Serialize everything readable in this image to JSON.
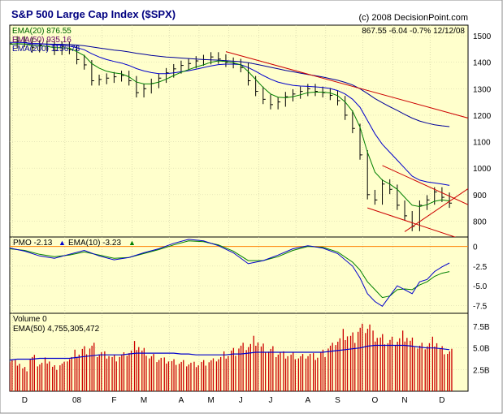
{
  "chart_data": {
    "type": "line",
    "title": "S&P 500 Large Cap Index ($SPX)",
    "copyright": "(c) 2008 DecisionPoint.com",
    "quote": "867.55  -6.04  -0.7%  12/12/08",
    "colors": {
      "background": "#ffffcc",
      "price": "#000000",
      "ema20": "#008000",
      "ema50": "#0000cc",
      "ema200": "#000099",
      "trendline": "#cc0000",
      "pmo": "#0000cc",
      "pmo_signal": "#008000",
      "zero_line": "#ff8000",
      "volume": "#cc0000",
      "volume_ema": "#0000cc",
      "title": "#0000aa"
    },
    "x_labels": [
      "D",
      "08",
      "F",
      "M",
      "A",
      "M",
      "J",
      "J",
      "A",
      "S",
      "O",
      "N",
      "D"
    ],
    "x_label_weeks": [
      2,
      9,
      14,
      18,
      23,
      27,
      31,
      35,
      40,
      44,
      49,
      53,
      58
    ],
    "price_panel": {
      "legend": [
        "EMA(20) 876.55",
        "EMA(50) 935.16",
        "EMA(200) 1156.78"
      ],
      "y_ticks": [
        800,
        900,
        1000,
        1100,
        1200,
        1300,
        1400,
        1500
      ],
      "ylim": [
        740,
        1540
      ],
      "weeks": [
        0,
        1,
        2,
        3,
        4,
        5,
        6,
        7,
        8,
        9,
        10,
        11,
        12,
        13,
        14,
        15,
        16,
        17,
        18,
        19,
        20,
        21,
        22,
        23,
        24,
        25,
        26,
        27,
        28,
        29,
        30,
        31,
        32,
        33,
        34,
        35,
        36,
        37,
        38,
        39,
        40,
        41,
        42,
        43,
        44,
        45,
        46,
        47,
        48,
        49,
        50,
        51,
        52,
        53,
        54,
        55,
        56,
        57,
        58,
        59
      ],
      "close": [
        1470,
        1480,
        1475,
        1455,
        1465,
        1460,
        1445,
        1460,
        1448,
        1410,
        1390,
        1330,
        1335,
        1340,
        1345,
        1350,
        1330,
        1285,
        1300,
        1320,
        1340,
        1360,
        1375,
        1388,
        1395,
        1405,
        1410,
        1420,
        1412,
        1400,
        1395,
        1380,
        1330,
        1290,
        1260,
        1240,
        1250,
        1270,
        1280,
        1290,
        1300,
        1290,
        1285,
        1275,
        1255,
        1200,
        1150,
        1050,
        900,
        880,
        940,
        920,
        860,
        820,
        780,
        860,
        880,
        910,
        890,
        868
      ],
      "ema20": [
        1468,
        1470,
        1469,
        1463,
        1462,
        1460,
        1455,
        1455,
        1453,
        1440,
        1425,
        1395,
        1378,
        1366,
        1360,
        1356,
        1345,
        1325,
        1318,
        1318,
        1325,
        1336,
        1350,
        1362,
        1372,
        1382,
        1390,
        1400,
        1405,
        1403,
        1398,
        1390,
        1365,
        1335,
        1305,
        1280,
        1268,
        1266,
        1270,
        1277,
        1285,
        1287,
        1287,
        1284,
        1274,
        1250,
        1215,
        1155,
        1060,
        985,
        955,
        940,
        920,
        890,
        860,
        855,
        862,
        875,
        880,
        876
      ],
      "ema50": [
        1475,
        1475,
        1474,
        1471,
        1470,
        1468,
        1465,
        1464,
        1461,
        1455,
        1447,
        1432,
        1420,
        1410,
        1403,
        1397,
        1388,
        1376,
        1367,
        1361,
        1357,
        1357,
        1360,
        1364,
        1368,
        1374,
        1380,
        1386,
        1391,
        1393,
        1393,
        1391,
        1380,
        1366,
        1350,
        1336,
        1325,
        1318,
        1313,
        1310,
        1309,
        1307,
        1305,
        1301,
        1293,
        1280,
        1260,
        1230,
        1180,
        1130,
        1090,
        1060,
        1030,
        1000,
        970,
        955,
        948,
        944,
        940,
        935
      ],
      "ema200": [
        1468,
        1469,
        1469,
        1469,
        1469,
        1469,
        1468,
        1468,
        1467,
        1465,
        1462,
        1458,
        1454,
        1450,
        1446,
        1443,
        1439,
        1434,
        1430,
        1426,
        1423,
        1420,
        1418,
        1416,
        1414,
        1412,
        1410,
        1409,
        1408,
        1406,
        1404,
        1402,
        1398,
        1393,
        1387,
        1381,
        1375,
        1369,
        1364,
        1359,
        1354,
        1349,
        1344,
        1338,
        1332,
        1324,
        1314,
        1300,
        1282,
        1263,
        1247,
        1232,
        1218,
        1203,
        1189,
        1178,
        1170,
        1164,
        1160,
        1157
      ],
      "trendlines": [
        {
          "x": [
            29,
            64
          ],
          "y": [
            1440,
            1170
          ]
        },
        {
          "x": [
            50,
            64
          ],
          "y": [
            1010,
            830
          ]
        },
        {
          "x": [
            48,
            64
          ],
          "y": [
            850,
            700
          ]
        },
        {
          "x": [
            53,
            64
          ],
          "y": [
            760,
            970
          ]
        }
      ]
    },
    "pmo_panel": {
      "legend": {
        "pmo": "PMO -2.13",
        "signal": "EMA(10) -3.23"
      },
      "y_ticks": [
        -7.5,
        -5.0,
        -2.5,
        0
      ],
      "y_tick_labels": [
        "-7.5",
        "-5.0",
        "-2.5",
        "0"
      ],
      "ylim": [
        -8.5,
        1.2
      ],
      "weeks": [
        0,
        2,
        4,
        6,
        8,
        10,
        12,
        14,
        16,
        18,
        20,
        22,
        24,
        26,
        28,
        30,
        32,
        34,
        36,
        38,
        40,
        42,
        44,
        46,
        47,
        48,
        49,
        50,
        51,
        52,
        53,
        54,
        55,
        56,
        57,
        58,
        59
      ],
      "pmo": [
        -0.2,
        -0.6,
        -1.2,
        -1.5,
        -1.0,
        -0.5,
        -1.2,
        -1.7,
        -1.4,
        -0.8,
        -0.3,
        0.4,
        0.9,
        0.7,
        0.1,
        -0.8,
        -2.2,
        -1.8,
        -1.1,
        -0.3,
        0.1,
        -0.2,
        -0.9,
        -2.5,
        -4.0,
        -6.0,
        -7.0,
        -7.6,
        -6.3,
        -5.0,
        -5.5,
        -6.0,
        -4.5,
        -4.2,
        -3.2,
        -2.6,
        -2.1
      ],
      "signal": [
        -0.3,
        -0.5,
        -1.0,
        -1.3,
        -1.1,
        -0.7,
        -1.1,
        -1.5,
        -1.4,
        -0.9,
        -0.4,
        0.2,
        0.7,
        0.6,
        0.2,
        -0.6,
        -1.8,
        -1.8,
        -1.3,
        -0.5,
        0.0,
        -0.1,
        -0.7,
        -2.0,
        -3.0,
        -4.5,
        -5.5,
        -6.5,
        -6.3,
        -5.5,
        -5.4,
        -5.5,
        -4.9,
        -4.5,
        -3.8,
        -3.4,
        -3.2
      ]
    },
    "volume_panel": {
      "legend": {
        "volume": "Volume 0",
        "ema": "EMA(50) 4,755,305,472"
      },
      "y_ticks": [
        2.5,
        5.0,
        7.5
      ],
      "y_tick_labels": [
        "2.5B",
        "5.0B",
        "7.5B"
      ],
      "ylim": [
        0,
        9
      ],
      "unit": "billion shares",
      "weeks": [
        0,
        1,
        2,
        3,
        4,
        5,
        6,
        7,
        8,
        9,
        10,
        11,
        12,
        13,
        14,
        15,
        16,
        17,
        18,
        19,
        20,
        21,
        22,
        23,
        24,
        25,
        26,
        27,
        28,
        29,
        30,
        31,
        32,
        33,
        34,
        35,
        36,
        37,
        38,
        39,
        40,
        41,
        42,
        43,
        44,
        45,
        46,
        47,
        48,
        49,
        50,
        51,
        52,
        53,
        54,
        55,
        56,
        57,
        58,
        59
      ],
      "volume": [
        3.8,
        3.6,
        2.8,
        4.2,
        3.5,
        3.9,
        3.0,
        3.4,
        4.2,
        4.8,
        5.2,
        5.6,
        4.8,
        4.6,
        4.2,
        4.5,
        5.0,
        5.8,
        5.0,
        4.3,
        4.1,
        3.9,
        3.7,
        3.6,
        3.5,
        3.4,
        3.6,
        3.8,
        4.2,
        4.6,
        5.0,
        5.6,
        5.8,
        6.4,
        5.5,
        5.2,
        4.8,
        4.6,
        4.5,
        4.3,
        4.6,
        4.4,
        4.8,
        5.6,
        6.5,
        7.2,
        6.8,
        7.8,
        8.2,
        7.0,
        6.6,
        6.3,
        6.5,
        7.0,
        6.2,
        5.6,
        5.9,
        6.3,
        5.2,
        4.9
      ],
      "ema50": [
        3.6,
        3.7,
        3.7,
        3.7,
        3.8,
        3.8,
        3.8,
        3.8,
        3.8,
        3.9,
        4.0,
        4.1,
        4.2,
        4.2,
        4.2,
        4.2,
        4.3,
        4.4,
        4.4,
        4.4,
        4.4,
        4.4,
        4.4,
        4.3,
        4.3,
        4.2,
        4.2,
        4.2,
        4.2,
        4.2,
        4.3,
        4.3,
        4.4,
        4.5,
        4.5,
        4.5,
        4.5,
        4.5,
        4.5,
        4.5,
        4.5,
        4.5,
        4.5,
        4.6,
        4.7,
        4.8,
        4.9,
        5.0,
        5.2,
        5.3,
        5.3,
        5.3,
        5.3,
        5.3,
        5.2,
        5.1,
        5.0,
        5.0,
        4.9,
        4.8
      ]
    }
  }
}
